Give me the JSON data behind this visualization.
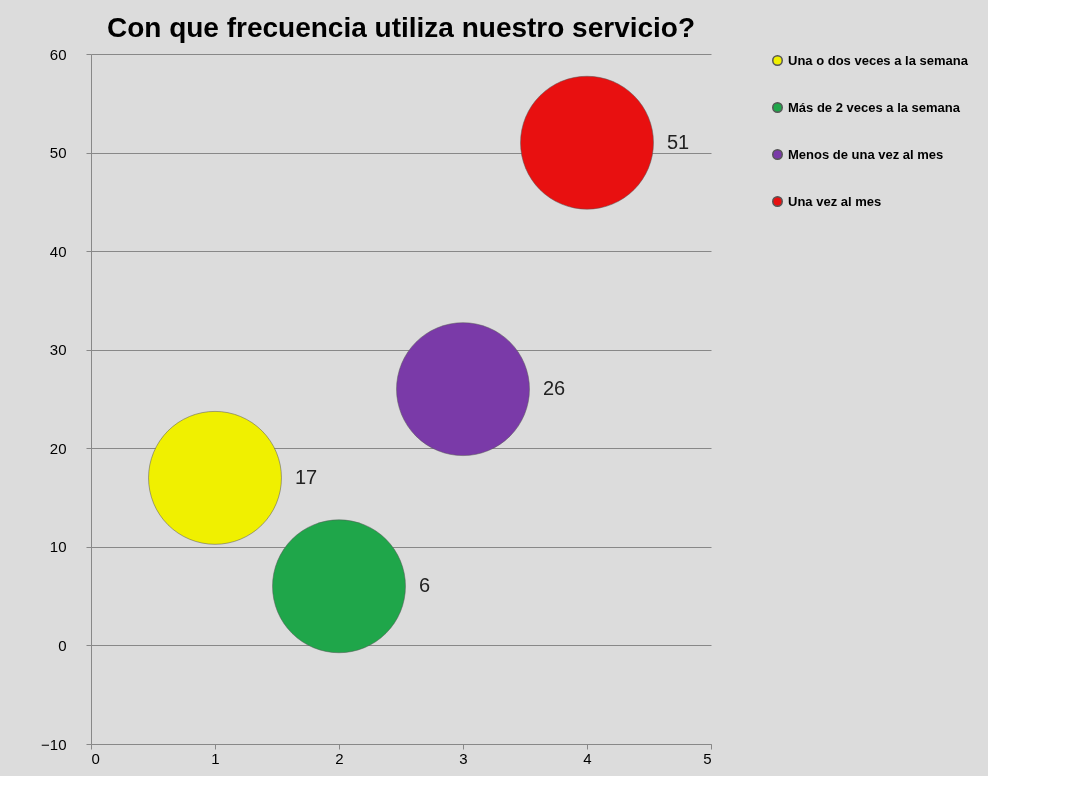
{
  "chart_data": {
    "type": "bubble",
    "title": "Con que frecuencia utiliza nuestro servicio?",
    "series": [
      {
        "name": "Una o dos veces a la semana",
        "color": "#f0f000",
        "x": [
          1
        ],
        "values": [
          17
        ],
        "sizes": [
          1
        ]
      },
      {
        "name": "Más de 2 veces a la semana",
        "color": "#1fa64a",
        "x": [
          2
        ],
        "values": [
          6
        ],
        "sizes": [
          1
        ]
      },
      {
        "name": "Menos de una vez al mes",
        "color": "#7a3aa8",
        "x": [
          3
        ],
        "values": [
          26
        ],
        "sizes": [
          1
        ]
      },
      {
        "name": "Una vez al mes",
        "color": "#e81010",
        "x": [
          4
        ],
        "values": [
          51
        ],
        "sizes": [
          1
        ]
      }
    ],
    "xlim": [
      0,
      5
    ],
    "xticks": [
      0,
      1,
      2,
      3,
      4,
      5
    ],
    "ylim": [
      -10,
      60
    ],
    "yticks": [
      -10,
      0,
      10,
      20,
      30,
      40,
      50,
      60
    ],
    "grid": "y",
    "legend": "right",
    "data_labels": true
  }
}
